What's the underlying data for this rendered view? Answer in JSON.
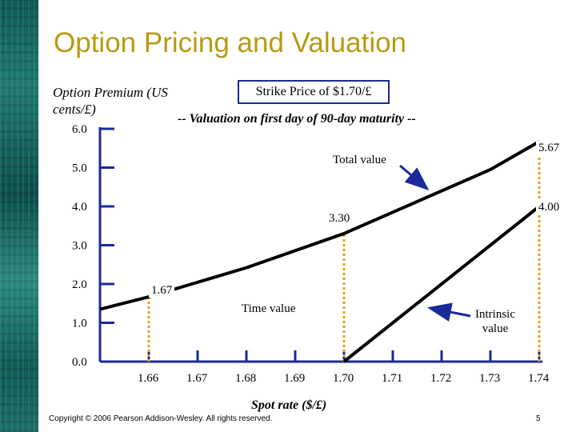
{
  "slide": {
    "title": "Option Pricing and Valuation",
    "copyright": "Copyright © 2006 Pearson Addison-Wesley. All rights reserved.",
    "page_number": "5"
  },
  "colors": {
    "title": "#b89a10",
    "axis": "#1a2a9a",
    "dotted": "#e0a020",
    "line": "#000000"
  },
  "chart_data": {
    "type": "line",
    "ylabel": "Option Premium (US cents/£)",
    "xlabel": "Spot rate ($/£)",
    "strike_label": "Strike Price of $1.70/£",
    "subtitle": "-- Valuation on first day of 90-day maturity --",
    "xlim": [
      1.65,
      1.74
    ],
    "ylim": [
      0,
      6
    ],
    "x_ticks": [
      "1.66",
      "1.67",
      "1.68",
      "1.69",
      "1.70",
      "1.71",
      "1.72",
      "1.73",
      "1.74"
    ],
    "y_ticks": [
      "0.0",
      "1.0",
      "2.0",
      "3.0",
      "4.0",
      "5.0",
      "6.0"
    ],
    "series": [
      {
        "name": "Total value",
        "points": [
          [
            1.65,
            1.35
          ],
          [
            1.66,
            1.67
          ],
          [
            1.68,
            2.42
          ],
          [
            1.7,
            3.3
          ],
          [
            1.73,
            4.95
          ],
          [
            1.74,
            5.67
          ]
        ]
      },
      {
        "name": "Intrinsic value",
        "points": [
          [
            1.7,
            0.0
          ],
          [
            1.74,
            4.0
          ]
        ]
      }
    ],
    "reference_lines": [
      {
        "x": 1.66,
        "y": 1.67
      },
      {
        "x": 1.7,
        "y": 3.3
      },
      {
        "x": 1.74,
        "y": 5.67
      }
    ],
    "annotations": {
      "v167": "1.67",
      "v330": "3.30",
      "v400": "4.00",
      "v567": "5.67",
      "total_value": "Total value",
      "time_value": "Time value",
      "intrinsic_line1": "Intrinsic",
      "intrinsic_line2": "value"
    }
  }
}
